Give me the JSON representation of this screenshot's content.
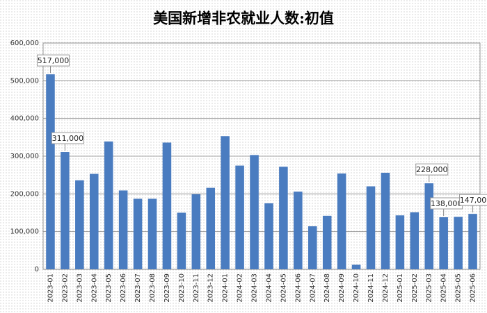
{
  "chart_data": {
    "type": "bar",
    "title": "美国新增非农就业人数:初值",
    "categories": [
      "2023-01",
      "2023-02",
      "2023-03",
      "2023-04",
      "2023-05",
      "2023-06",
      "2023-07",
      "2023-08",
      "2023-09",
      "2023-10",
      "2023-11",
      "2023-12",
      "2024-01",
      "2024-02",
      "2024-03",
      "2024-04",
      "2024-05",
      "2024-06",
      "2024-07",
      "2024-08",
      "2024-09",
      "2024-10",
      "2024-11",
      "2024-12",
      "2025-01",
      "2025-02",
      "2025-03",
      "2025-04",
      "2025-05",
      "2025-06"
    ],
    "values": [
      517000,
      311000,
      236000,
      253000,
      339000,
      209000,
      187000,
      187000,
      336000,
      150000,
      199000,
      216000,
      353000,
      275000,
      303000,
      175000,
      272000,
      206000,
      114000,
      142000,
      254000,
      12000,
      220000,
      256000,
      143000,
      151000,
      228000,
      138000,
      139000,
      147000
    ],
    "value_labels": [
      "517,000",
      "311,000",
      null,
      null,
      null,
      null,
      null,
      null,
      null,
      null,
      null,
      null,
      null,
      null,
      null,
      null,
      null,
      null,
      null,
      null,
      null,
      null,
      null,
      null,
      null,
      null,
      "228,000",
      "138,000",
      null,
      "147,000"
    ],
    "color": "#4a7cc0",
    "ylim": [
      0,
      600000
    ],
    "yticks": [
      0,
      {
        "value": 100000,
        "label": "100,000"
      },
      {
        "value": 200000,
        "label": "200,000"
      },
      {
        "value": 300000,
        "label": "300,000"
      },
      {
        "value": 400000,
        "label": "400,000"
      },
      {
        "value": 500000,
        "label": "500,000"
      },
      {
        "value": 600000,
        "label": "600,000"
      }
    ],
    "grid": true
  }
}
